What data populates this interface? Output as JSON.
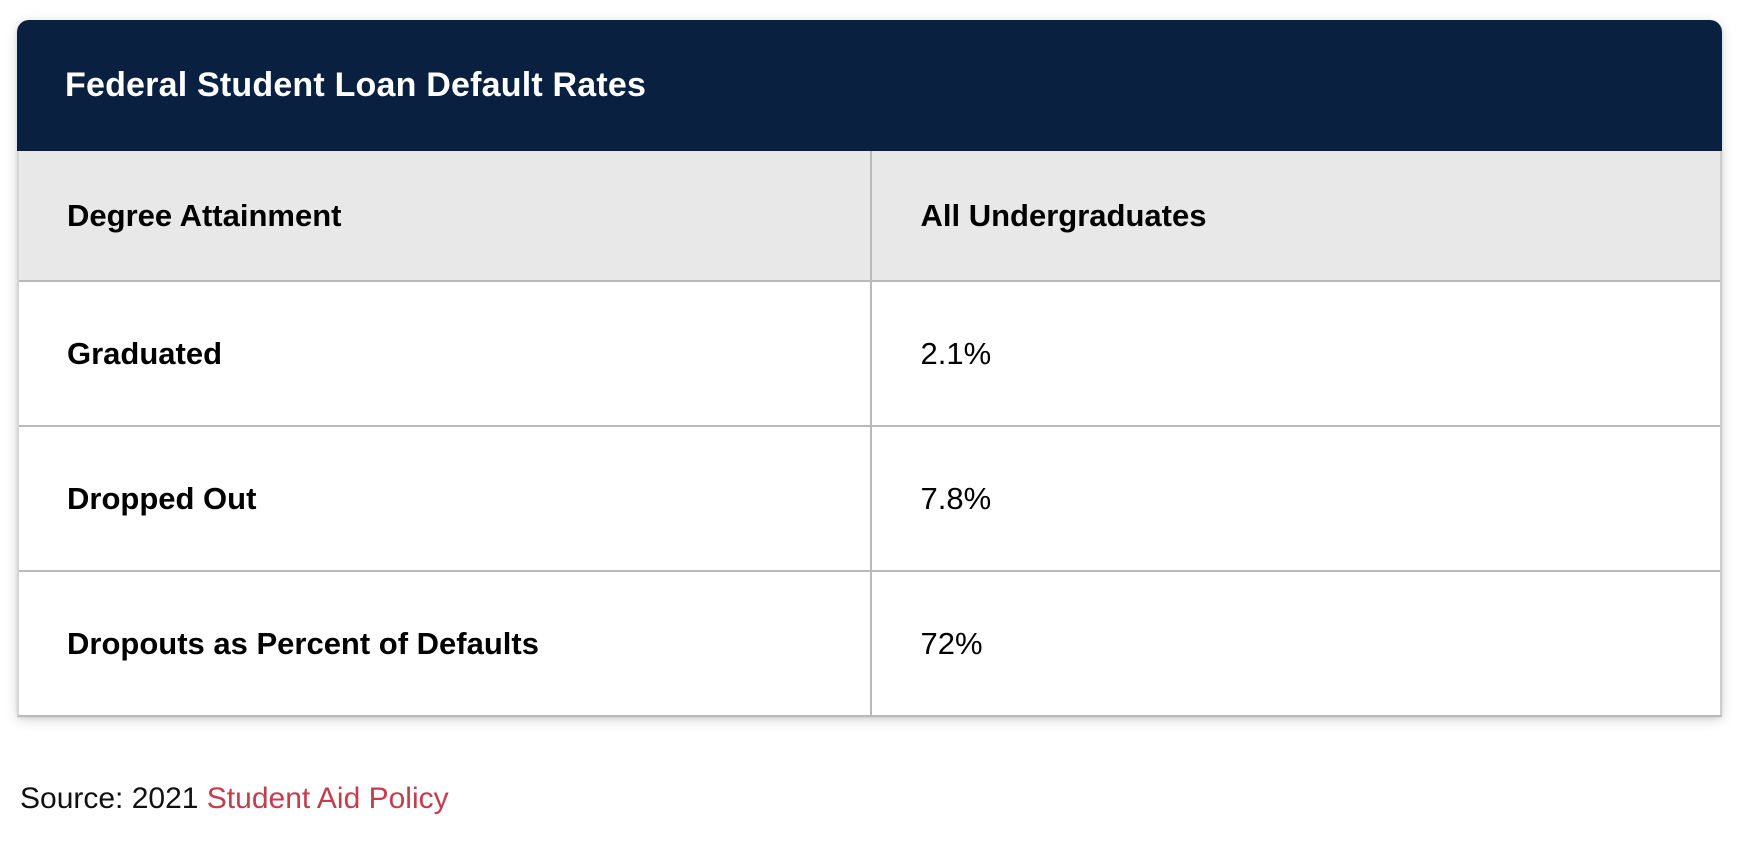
{
  "table": {
    "title": "Federal Student Loan Default Rates",
    "columns": [
      "Degree Attainment",
      "All Undergraduates"
    ],
    "rows": [
      {
        "label": "Graduated",
        "value": "2.1%"
      },
      {
        "label": "Dropped Out",
        "value": "7.8%"
      },
      {
        "label": "Dropouts as Percent of Defaults",
        "value": "72%"
      }
    ]
  },
  "chart_data": {
    "type": "table",
    "title": "Federal Student Loan Default Rates",
    "columns": [
      "Degree Attainment",
      "All Undergraduates"
    ],
    "rows": [
      [
        "Graduated",
        "2.1%"
      ],
      [
        "Dropped Out",
        "7.8%"
      ],
      [
        "Dropouts as Percent of Defaults",
        "72%"
      ]
    ],
    "series": [
      {
        "name": "All Undergraduates",
        "categories": [
          "Graduated",
          "Dropped Out",
          "Dropouts as Percent of Defaults"
        ],
        "values": [
          2.1,
          7.8,
          72
        ],
        "unit": "%"
      }
    ]
  },
  "source": {
    "prefix": "Source: 2021 ",
    "link_label": "Student Aid Policy"
  },
  "colors": {
    "title_bar_navy": "#0a2040",
    "header_row_gray": "#e8e8e8",
    "row_border_gray": "#b9b9b9",
    "link_red": "#c43d4d",
    "title_text": "#ffffff",
    "cell_text": "#000000"
  }
}
